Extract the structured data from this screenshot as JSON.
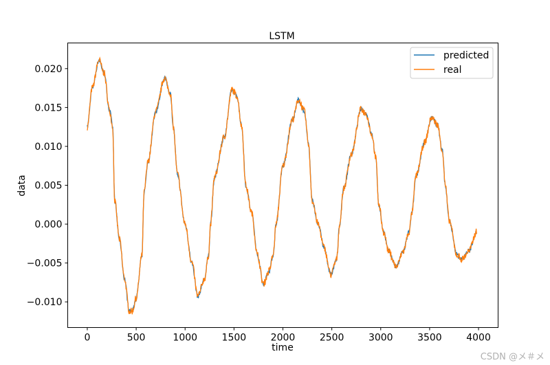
{
  "chart_data": {
    "type": "line",
    "title": "LSTM",
    "xlabel": "time",
    "ylabel": "data",
    "xlim": [
      -200,
      4200
    ],
    "ylim": [
      -0.0133,
      0.0233
    ],
    "xticks": [
      0,
      500,
      1000,
      1500,
      2000,
      2500,
      3000,
      3500,
      4000
    ],
    "xtick_labels": [
      "0",
      "500",
      "1000",
      "1500",
      "2000",
      "2500",
      "3000",
      "3500",
      "4000"
    ],
    "yticks": [
      -0.01,
      -0.005,
      0.0,
      0.005,
      0.01,
      0.015,
      0.02
    ],
    "ytick_labels": [
      "−0.010",
      "−0.005",
      "0.000",
      "0.005",
      "0.010",
      "0.015",
      "0.020"
    ],
    "grid": false,
    "legend": "top-right",
    "series": [
      {
        "name": "predicted",
        "color": "#1f77b4"
      },
      {
        "name": "real",
        "color": "#ff7f0e"
      }
    ],
    "keypoints": {
      "x": [
        0,
        50,
        120,
        170,
        230,
        260,
        280,
        330,
        380,
        430,
        460,
        500,
        560,
        580,
        620,
        700,
        790,
        850,
        880,
        920,
        1000,
        1070,
        1130,
        1200,
        1240,
        1260,
        1300,
        1400,
        1480,
        1530,
        1580,
        1620,
        1680,
        1740,
        1800,
        1860,
        1900,
        1930,
        2000,
        2100,
        2160,
        2220,
        2260,
        2300,
        2360,
        2420,
        2490,
        2550,
        2580,
        2620,
        2700,
        2800,
        2850,
        2910,
        2950,
        2980,
        3030,
        3080,
        3160,
        3230,
        3290,
        3320,
        3360,
        3450,
        3520,
        3580,
        3630,
        3660,
        3700,
        3780,
        3830,
        3900,
        3980
      ],
      "y": [
        0.0125,
        0.0175,
        0.0211,
        0.0195,
        0.0145,
        0.0125,
        0.003,
        -0.002,
        -0.007,
        -0.0112,
        -0.0112,
        -0.0095,
        -0.004,
        0.004,
        0.008,
        0.0145,
        0.0188,
        0.0168,
        0.0125,
        0.0065,
        0.0,
        -0.005,
        -0.0093,
        -0.007,
        -0.004,
        0.0,
        0.006,
        0.0112,
        0.0173,
        0.0165,
        0.0125,
        0.005,
        0.0015,
        -0.004,
        -0.0077,
        -0.006,
        -0.004,
        0.0,
        0.0075,
        0.0135,
        0.016,
        0.0145,
        0.0105,
        0.003,
        0.0,
        -0.003,
        -0.0065,
        -0.0045,
        0.0,
        0.0045,
        0.009,
        0.0148,
        0.0142,
        0.0115,
        0.0085,
        0.0025,
        -0.001,
        -0.0035,
        -0.0055,
        -0.0035,
        -0.001,
        0.0015,
        0.0062,
        0.0105,
        0.0137,
        0.0128,
        0.0095,
        0.005,
        0.0005,
        -0.004,
        -0.0045,
        -0.0035,
        -0.001
      ]
    }
  },
  "watermark": "CSDN @メ＃メ"
}
